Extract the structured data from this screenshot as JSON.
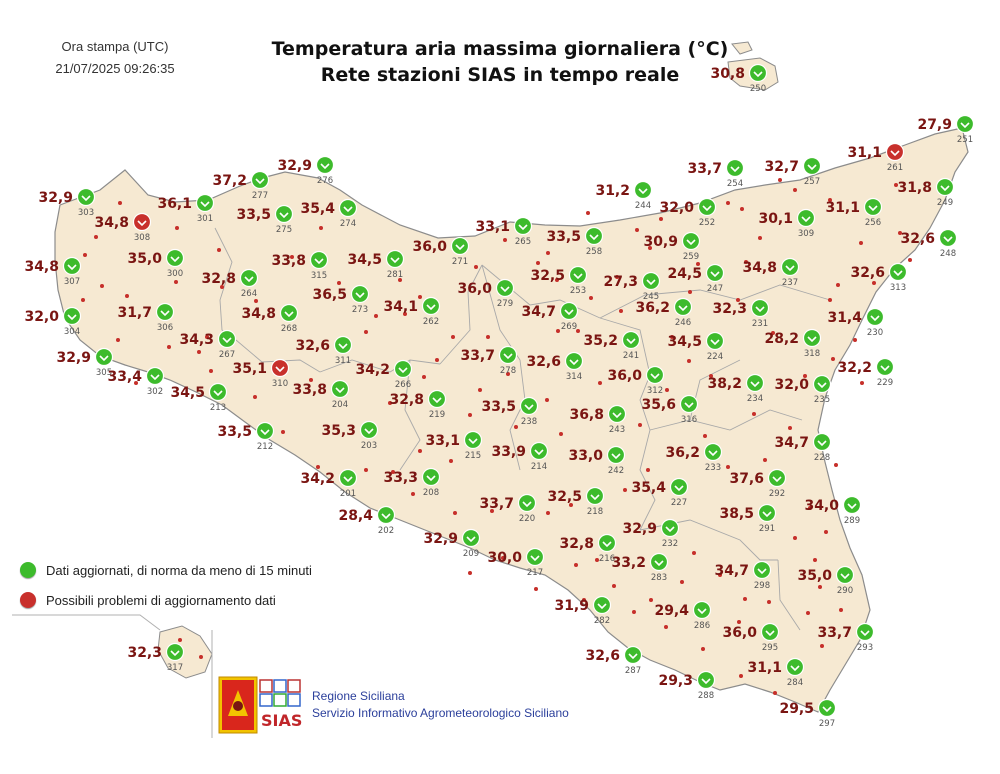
{
  "header": {
    "print_label": "Ora stampa (UTC)",
    "print_time": "21/07/2025 09:26:35",
    "title_line1": "Temperatura aria massima giornaliera (°C)",
    "title_line2": "Rete stazioni SIAS in tempo reale"
  },
  "legend": {
    "ok_label": "Dati aggiornati, di norma da meno di 15 minuti",
    "problem_label": "Possibili problemi di aggiornamento dati",
    "ok_color": "#3dbb2c",
    "problem_color": "#c8302c"
  },
  "footer": {
    "region": "Regione Siciliana",
    "service": "Servizio Informativo Agrometeorologico Siciliano",
    "logo_text": "SIAS"
  },
  "colors": {
    "land": "#f6e9d2",
    "value_text": "#7a1512",
    "station_dot": "#c62f2a"
  },
  "stations": [
    {
      "id": "250",
      "value": "30,8",
      "status": "ok",
      "lon": 758,
      "lat": 73
    },
    {
      "id": "251",
      "value": "27,9",
      "status": "ok",
      "lon": 965,
      "lat": 124
    },
    {
      "id": "261",
      "value": "31,1",
      "status": "problem",
      "lon": 895,
      "lat": 152
    },
    {
      "id": "249",
      "value": "31,8",
      "status": "ok",
      "lon": 945,
      "lat": 187
    },
    {
      "id": "248",
      "value": "32,6",
      "status": "ok",
      "lon": 948,
      "lat": 238
    },
    {
      "id": "313",
      "value": "32,6",
      "status": "ok",
      "lon": 898,
      "lat": 272
    },
    {
      "id": "230",
      "value": "31,4",
      "status": "ok",
      "lon": 875,
      "lat": 317
    },
    {
      "id": "229",
      "value": "32,2",
      "status": "ok",
      "lon": 885,
      "lat": 367
    },
    {
      "id": "235",
      "value": "32,0",
      "status": "ok",
      "lon": 822,
      "lat": 384
    },
    {
      "id": "228",
      "value": "34,7",
      "status": "ok",
      "lon": 822,
      "lat": 442
    },
    {
      "id": "289",
      "value": "34,0",
      "status": "ok",
      "lon": 852,
      "lat": 505
    },
    {
      "id": "290",
      "value": "35,0",
      "status": "ok",
      "lon": 845,
      "lat": 575
    },
    {
      "id": "293",
      "value": "33,7",
      "status": "ok",
      "lon": 865,
      "lat": 632
    },
    {
      "id": "297",
      "value": "29,5",
      "status": "ok",
      "lon": 827,
      "lat": 708
    },
    {
      "id": "284",
      "value": "31,1",
      "status": "ok",
      "lon": 795,
      "lat": 667
    },
    {
      "id": "295",
      "value": "36,0",
      "status": "ok",
      "lon": 770,
      "lat": 632
    },
    {
      "id": "298",
      "value": "34,7",
      "status": "ok",
      "lon": 762,
      "lat": 570
    },
    {
      "id": "291",
      "value": "38,5",
      "status": "ok",
      "lon": 767,
      "lat": 513
    },
    {
      "id": "292",
      "value": "37,6",
      "status": "ok",
      "lon": 777,
      "lat": 478
    },
    {
      "id": "233",
      "value": "36,2",
      "status": "ok",
      "lon": 713,
      "lat": 452
    },
    {
      "id": "234",
      "value": "38,2",
      "status": "ok",
      "lon": 755,
      "lat": 383
    },
    {
      "id": "318",
      "value": "28,2",
      "status": "ok",
      "lon": 812,
      "lat": 338
    },
    {
      "id": "231",
      "value": "32,3",
      "status": "ok",
      "lon": 760,
      "lat": 308
    },
    {
      "id": "237",
      "value": "34,8",
      "status": "ok",
      "lon": 790,
      "lat": 267
    },
    {
      "id": "309",
      "value": "30,1",
      "status": "ok",
      "lon": 806,
      "lat": 218
    },
    {
      "id": "256",
      "value": "31,1",
      "status": "ok",
      "lon": 873,
      "lat": 207
    },
    {
      "id": "257",
      "value": "32,7",
      "status": "ok",
      "lon": 812,
      "lat": 166
    },
    {
      "id": "254",
      "value": "33,7",
      "status": "ok",
      "lon": 735,
      "lat": 168
    },
    {
      "id": "244",
      "value": "31,2",
      "status": "ok",
      "lon": 643,
      "lat": 190
    },
    {
      "id": "252",
      "value": "32,0",
      "status": "ok",
      "lon": 707,
      "lat": 207
    },
    {
      "id": "259",
      "value": "30,9",
      "status": "ok",
      "lon": 691,
      "lat": 241
    },
    {
      "id": "247",
      "value": "24,5",
      "status": "ok",
      "lon": 715,
      "lat": 273
    },
    {
      "id": "245",
      "value": "27,3",
      "status": "ok",
      "lon": 651,
      "lat": 281
    },
    {
      "id": "246",
      "value": "36,2",
      "status": "ok",
      "lon": 683,
      "lat": 307
    },
    {
      "id": "224",
      "value": "34,5",
      "status": "ok",
      "lon": 715,
      "lat": 341
    },
    {
      "id": "241",
      "value": "35,2",
      "status": "ok",
      "lon": 631,
      "lat": 340
    },
    {
      "id": "312",
      "value": "36,0",
      "status": "ok",
      "lon": 655,
      "lat": 375
    },
    {
      "id": "316",
      "value": "35,6",
      "status": "ok",
      "lon": 689,
      "lat": 404
    },
    {
      "id": "243",
      "value": "36,8",
      "status": "ok",
      "lon": 617,
      "lat": 414
    },
    {
      "id": "242",
      "value": "33,0",
      "status": "ok",
      "lon": 616,
      "lat": 455
    },
    {
      "id": "227",
      "value": "35,4",
      "status": "ok",
      "lon": 679,
      "lat": 487
    },
    {
      "id": "232",
      "value": "32,9",
      "status": "ok",
      "lon": 670,
      "lat": 528
    },
    {
      "id": "283",
      "value": "33,2",
      "status": "ok",
      "lon": 659,
      "lat": 562
    },
    {
      "id": "286",
      "value": "29,4",
      "status": "ok",
      "lon": 702,
      "lat": 610
    },
    {
      "id": "288",
      "value": "29,3",
      "status": "ok",
      "lon": 706,
      "lat": 680
    },
    {
      "id": "287",
      "value": "32,6",
      "status": "ok",
      "lon": 633,
      "lat": 655
    },
    {
      "id": "282",
      "value": "31,9",
      "status": "ok",
      "lon": 602,
      "lat": 605
    },
    {
      "id": "216",
      "value": "32,8",
      "status": "ok",
      "lon": 607,
      "lat": 543
    },
    {
      "id": "218",
      "value": "32,5",
      "status": "ok",
      "lon": 595,
      "lat": 496
    },
    {
      "id": "217",
      "value": "30,0",
      "status": "ok",
      "lon": 535,
      "lat": 557
    },
    {
      "id": "220",
      "value": "33,7",
      "status": "ok",
      "lon": 527,
      "lat": 503
    },
    {
      "id": "209",
      "value": "32,9",
      "status": "ok",
      "lon": 471,
      "lat": 538
    },
    {
      "id": "214",
      "value": "33,9",
      "status": "ok",
      "lon": 539,
      "lat": 451
    },
    {
      "id": "215",
      "value": "33,1",
      "status": "ok",
      "lon": 473,
      "lat": 440
    },
    {
      "id": "238",
      "value": "33,5",
      "status": "ok",
      "lon": 529,
      "lat": 406
    },
    {
      "id": "314",
      "value": "32,6",
      "status": "ok",
      "lon": 574,
      "lat": 361
    },
    {
      "id": "278",
      "value": "33,7",
      "status": "ok",
      "lon": 508,
      "lat": 355
    },
    {
      "id": "269",
      "value": "34,7",
      "status": "ok",
      "lon": 569,
      "lat": 311
    },
    {
      "id": "279",
      "value": "36,0",
      "status": "ok",
      "lon": 505,
      "lat": 288
    },
    {
      "id": "253",
      "value": "32,5",
      "status": "ok",
      "lon": 578,
      "lat": 275
    },
    {
      "id": "258",
      "value": "33,5",
      "status": "ok",
      "lon": 594,
      "lat": 236
    },
    {
      "id": "265",
      "value": "33,1",
      "status": "ok",
      "lon": 523,
      "lat": 226
    },
    {
      "id": "271",
      "value": "36,0",
      "status": "ok",
      "lon": 460,
      "lat": 246
    },
    {
      "id": "262",
      "value": "34,1",
      "status": "ok",
      "lon": 431,
      "lat": 306
    },
    {
      "id": "219",
      "value": "32,8",
      "status": "ok",
      "lon": 437,
      "lat": 399
    },
    {
      "id": "208",
      "value": "33,3",
      "status": "ok",
      "lon": 431,
      "lat": 477
    },
    {
      "id": "202",
      "value": "28,4",
      "status": "ok",
      "lon": 386,
      "lat": 515
    },
    {
      "id": "201",
      "value": "34,2",
      "status": "ok",
      "lon": 348,
      "lat": 478
    },
    {
      "id": "203",
      "value": "35,3",
      "status": "ok",
      "lon": 369,
      "lat": 430
    },
    {
      "id": "266",
      "value": "34,2",
      "status": "ok",
      "lon": 403,
      "lat": 369
    },
    {
      "id": "204",
      "value": "33,8",
      "status": "ok",
      "lon": 340,
      "lat": 389
    },
    {
      "id": "311",
      "value": "32,6",
      "status": "ok",
      "lon": 343,
      "lat": 345
    },
    {
      "id": "273",
      "value": "36,5",
      "status": "ok",
      "lon": 360,
      "lat": 294
    },
    {
      "id": "281",
      "value": "34,5",
      "status": "ok",
      "lon": 395,
      "lat": 259
    },
    {
      "id": "315",
      "value": "33,8",
      "status": "ok",
      "lon": 319,
      "lat": 260
    },
    {
      "id": "274",
      "value": "35,4",
      "status": "ok",
      "lon": 348,
      "lat": 208
    },
    {
      "id": "275",
      "value": "33,5",
      "status": "ok",
      "lon": 284,
      "lat": 214
    },
    {
      "id": "276",
      "value": "32,9",
      "status": "ok",
      "lon": 325,
      "lat": 165
    },
    {
      "id": "277",
      "value": "37,2",
      "status": "ok",
      "lon": 260,
      "lat": 180
    },
    {
      "id": "301",
      "value": "36,1",
      "status": "ok",
      "lon": 205,
      "lat": 203
    },
    {
      "id": "264",
      "value": "32,8",
      "status": "ok",
      "lon": 249,
      "lat": 278
    },
    {
      "id": "268",
      "value": "34,8",
      "status": "ok",
      "lon": 289,
      "lat": 313
    },
    {
      "id": "267",
      "value": "34,3",
      "status": "ok",
      "lon": 227,
      "lat": 339
    },
    {
      "id": "310",
      "value": "35,1",
      "status": "problem",
      "lon": 280,
      "lat": 368
    },
    {
      "id": "213",
      "value": "34,5",
      "status": "ok",
      "lon": 218,
      "lat": 392
    },
    {
      "id": "212",
      "value": "33,5",
      "status": "ok",
      "lon": 265,
      "lat": 431
    },
    {
      "id": "300",
      "value": "35,0",
      "status": "ok",
      "lon": 175,
      "lat": 258
    },
    {
      "id": "306",
      "value": "31,7",
      "status": "ok",
      "lon": 165,
      "lat": 312
    },
    {
      "id": "308",
      "value": "34,8",
      "status": "problem",
      "lon": 142,
      "lat": 222
    },
    {
      "id": "303",
      "value": "32,9",
      "status": "ok",
      "lon": 86,
      "lat": 197
    },
    {
      "id": "307",
      "value": "34,8",
      "status": "ok",
      "lon": 72,
      "lat": 266
    },
    {
      "id": "304",
      "value": "32,0",
      "status": "ok",
      "lon": 72,
      "lat": 316
    },
    {
      "id": "305",
      "value": "32,9",
      "status": "ok",
      "lon": 104,
      "lat": 357
    },
    {
      "id": "302",
      "value": "33,4",
      "status": "ok",
      "lon": 155,
      "lat": 376
    },
    {
      "id": "317",
      "value": "32,3",
      "status": "ok",
      "lon": 175,
      "lat": 652
    }
  ],
  "minor_points": [
    [
      728,
      203
    ],
    [
      795,
      190
    ],
    [
      861,
      243
    ],
    [
      896,
      185
    ],
    [
      830,
      300
    ],
    [
      838,
      285
    ],
    [
      760,
      238
    ],
    [
      746,
      262
    ],
    [
      738,
      300
    ],
    [
      650,
      248
    ],
    [
      698,
      264
    ],
    [
      548,
      253
    ],
    [
      505,
      240
    ],
    [
      476,
      267
    ],
    [
      557,
      280
    ],
    [
      538,
      263
    ],
    [
      420,
      297
    ],
    [
      400,
      280
    ],
    [
      405,
      314
    ],
    [
      366,
      332
    ],
    [
      311,
      380
    ],
    [
      424,
      377
    ],
    [
      437,
      360
    ],
    [
      480,
      390
    ],
    [
      470,
      415
    ],
    [
      451,
      461
    ],
    [
      516,
      427
    ],
    [
      561,
      434
    ],
    [
      547,
      400
    ],
    [
      508,
      374
    ],
    [
      488,
      337
    ],
    [
      453,
      337
    ],
    [
      558,
      331
    ],
    [
      578,
      331
    ],
    [
      621,
      311
    ],
    [
      600,
      383
    ],
    [
      640,
      425
    ],
    [
      648,
      470
    ],
    [
      625,
      490
    ],
    [
      705,
      436
    ],
    [
      728,
      467
    ],
    [
      754,
      414
    ],
    [
      790,
      428
    ],
    [
      765,
      460
    ],
    [
      795,
      538
    ],
    [
      815,
      560
    ],
    [
      808,
      613
    ],
    [
      739,
      622
    ],
    [
      745,
      599
    ],
    [
      769,
      602
    ],
    [
      720,
      575
    ],
    [
      694,
      553
    ],
    [
      682,
      582
    ],
    [
      651,
      600
    ],
    [
      614,
      586
    ],
    [
      571,
      505
    ],
    [
      576,
      565
    ],
    [
      548,
      513
    ],
    [
      503,
      558
    ],
    [
      492,
      511
    ],
    [
      455,
      513
    ],
    [
      413,
      494
    ],
    [
      393,
      472
    ],
    [
      318,
      467
    ],
    [
      283,
      432
    ],
    [
      255,
      397
    ],
    [
      211,
      371
    ],
    [
      199,
      352
    ],
    [
      169,
      347
    ],
    [
      127,
      296
    ],
    [
      102,
      286
    ],
    [
      96,
      237
    ],
    [
      120,
      203
    ],
    [
      177,
      228
    ],
    [
      176,
      282
    ],
    [
      219,
      250
    ],
    [
      222,
      287
    ],
    [
      207,
      337
    ],
    [
      256,
      301
    ],
    [
      292,
      257
    ],
    [
      321,
      228
    ],
    [
      339,
      283
    ],
    [
      376,
      316
    ],
    [
      390,
      403
    ],
    [
      366,
      470
    ],
    [
      420,
      451
    ],
    [
      588,
      213
    ],
    [
      637,
      230
    ],
    [
      661,
      219
    ],
    [
      617,
      277
    ],
    [
      591,
      298
    ],
    [
      689,
      361
    ],
    [
      667,
      390
    ],
    [
      805,
      376
    ],
    [
      833,
      359
    ],
    [
      773,
      333
    ],
    [
      711,
      376
    ],
    [
      672,
      337
    ],
    [
      690,
      292
    ],
    [
      742,
      209
    ],
    [
      780,
      180
    ],
    [
      830,
      200
    ],
    [
      900,
      233
    ],
    [
      910,
      260
    ],
    [
      874,
      283
    ],
    [
      855,
      340
    ],
    [
      862,
      383
    ],
    [
      836,
      465
    ],
    [
      810,
      508
    ],
    [
      826,
      532
    ],
    [
      820,
      587
    ],
    [
      841,
      610
    ],
    [
      822,
      646
    ],
    [
      775,
      693
    ],
    [
      741,
      676
    ],
    [
      703,
      649
    ],
    [
      666,
      627
    ],
    [
      634,
      612
    ],
    [
      584,
      600
    ],
    [
      597,
      560
    ],
    [
      536,
      589
    ],
    [
      470,
      573
    ],
    [
      180,
      640
    ],
    [
      201,
      657
    ],
    [
      136,
      383
    ],
    [
      118,
      340
    ],
    [
      83,
      300
    ],
    [
      85,
      255
    ]
  ],
  "boundaries": [
    "M215,228 L232,262 L220,300 L222,330 L236,340",
    "M236,340 L262,362 L300,360 L320,372",
    "M320,372 L352,360 L390,372 L410,360 L440,364",
    "M440,364 L470,330 L468,292 L482,265",
    "M482,265 L530,305 L560,300 L600,318",
    "M600,318 L640,330 L650,375 L640,400 L650,430",
    "M650,430 L690,420 L730,430 L770,410 L802,420",
    "M650,430 L640,470 L655,500 L640,530",
    "M640,530 L690,520 L740,540 L760,560 L778,560",
    "M778,560 L780,600 L800,630",
    "M600,318 L645,295 L700,290 L740,300 L780,285 L830,300",
    "M690,420 L700,380 L740,360",
    "M482,265 L500,330 L520,360 L525,400 L510,430 L520,470",
    "M410,360 L405,410 L420,440 L400,470"
  ]
}
